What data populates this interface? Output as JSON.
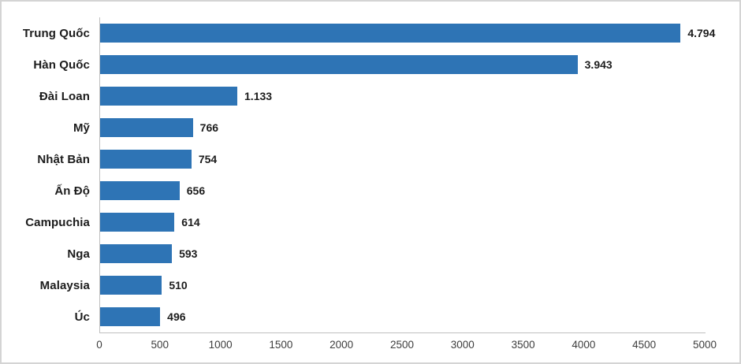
{
  "chart_data": {
    "type": "bar",
    "orientation": "horizontal",
    "title": "",
    "xlabel": "",
    "ylabel": "",
    "grid": false,
    "legend": false,
    "categories": [
      "Trung Quốc",
      "Hàn Quốc",
      "Đài Loan",
      "Mỹ",
      "Nhật Bản",
      "Ấn Độ",
      "Campuchia",
      "Nga",
      "Malaysia",
      "Úc"
    ],
    "values": [
      4794,
      3943,
      1133,
      766,
      754,
      656,
      614,
      593,
      510,
      496
    ],
    "value_labels": [
      "4.794",
      "3.943",
      "1.133",
      "766",
      "754",
      "656",
      "614",
      "593",
      "510",
      "496"
    ],
    "xlim": [
      0,
      5000
    ],
    "x_ticks": [
      0,
      500,
      1000,
      1500,
      2000,
      2500,
      3000,
      3500,
      4000,
      4500,
      5000
    ],
    "x_tick_labels": [
      "0",
      "500",
      "1000",
      "1500",
      "2000",
      "2500",
      "3000",
      "3500",
      "4000",
      "4500",
      "5000"
    ],
    "bar_color": "#2E74B5",
    "axis_color": "#BFBFBF",
    "label_color": "#1C1C1C",
    "tick_color": "#3D3D3D",
    "frame_border_color": "#D4D4D4"
  }
}
